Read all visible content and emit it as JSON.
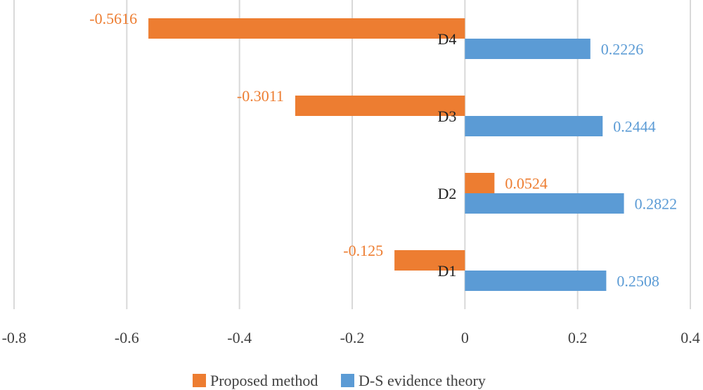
{
  "chart_data": {
    "type": "bar",
    "orientation": "horizontal",
    "title": "",
    "xlabel": "",
    "ylabel": "",
    "xlim": [
      -0.8,
      0.4
    ],
    "x_ticks": [
      -0.8,
      -0.6,
      -0.4,
      -0.2,
      0,
      0.2,
      0.4
    ],
    "x_tick_labels": [
      "-0.8",
      "-0.6",
      "-0.4",
      "-0.2",
      "0",
      "0.2",
      "0.4"
    ],
    "grid": true,
    "legend_position": "bottom",
    "categories": [
      "D1",
      "D2",
      "D3",
      "D4"
    ],
    "series": [
      {
        "name": "Proposed method",
        "color": "#ED7D31",
        "values": [
          -0.125,
          0.0524,
          -0.3011,
          -0.5616
        ],
        "labels": [
          "-0.125",
          "0.0524",
          "-0.3011",
          "-0.5616"
        ]
      },
      {
        "name": "D-S evidence theory",
        "color": "#5B9BD5",
        "values": [
          0.2508,
          0.2822,
          0.2444,
          0.2226
        ],
        "labels": [
          "0.2508",
          "0.2822",
          "0.2444",
          "0.2226"
        ]
      }
    ]
  }
}
